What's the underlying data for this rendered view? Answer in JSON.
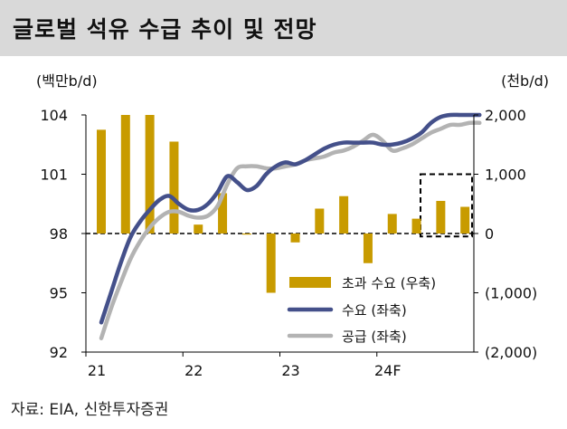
{
  "chart_data": {
    "type": "bar",
    "title": "글로벌 석유 수급 추이 및 전망",
    "left_axis": {
      "unit_label": "(백만b/d)",
      "range": [
        92,
        104
      ],
      "ticks": [
        104,
        101,
        98,
        95,
        92
      ],
      "tick_labels": [
        "104",
        "101",
        "98",
        "95",
        "92"
      ]
    },
    "right_axis": {
      "unit_label": "(천b/d)",
      "range": [
        -2000,
        2000
      ],
      "ticks": [
        2000,
        1000,
        0,
        -1000,
        -2000
      ],
      "tick_labels": [
        "2,000",
        "1,000",
        "0",
        "(1,000)",
        "(2,000)"
      ]
    },
    "x_axis": {
      "range": [
        2021.0,
        2025.0
      ],
      "ticks": [
        2021,
        2022,
        2023,
        2024
      ],
      "tick_labels": [
        "21",
        "22",
        "23",
        "24F"
      ]
    },
    "series": [
      {
        "name": "초과 수요 (우축)",
        "kind": "bar",
        "axis": "right",
        "color": "#c89b00",
        "x": [
          2021.0,
          2021.25,
          2021.5,
          2021.75,
          2022.0,
          2022.25,
          2022.5,
          2022.75,
          2023.0,
          2023.25,
          2023.5,
          2023.75,
          2024.0,
          2024.25,
          2024.5,
          2024.75
        ],
        "values": [
          1750,
          2000,
          2000,
          1550,
          150,
          680,
          0,
          -1000,
          -150,
          420,
          630,
          -500,
          330,
          250,
          550,
          450
        ]
      },
      {
        "name": "수요 (좌축)",
        "kind": "line",
        "axis": "left",
        "color": "#44508a",
        "x": [
          2021.0,
          2021.1,
          2021.2,
          2021.3,
          2021.4,
          2021.5,
          2021.6,
          2021.7,
          2021.8,
          2021.9,
          2022.0,
          2022.1,
          2022.2,
          2022.3,
          2022.4,
          2022.5,
          2022.6,
          2022.7,
          2022.8,
          2022.9,
          2023.0,
          2023.1,
          2023.2,
          2023.3,
          2023.4,
          2023.5,
          2023.6,
          2023.7,
          2023.8,
          2023.9,
          2024.0,
          2024.1,
          2024.2,
          2024.3,
          2024.4,
          2024.5,
          2024.6,
          2024.7,
          2024.8,
          2024.9
        ],
        "values": [
          93.5,
          95.0,
          96.5,
          97.8,
          98.6,
          99.2,
          99.7,
          99.9,
          99.5,
          99.2,
          99.2,
          99.5,
          100.1,
          100.9,
          100.6,
          100.2,
          100.4,
          101.0,
          101.4,
          101.6,
          101.5,
          101.7,
          102.0,
          102.3,
          102.5,
          102.6,
          102.6,
          102.6,
          102.6,
          102.5,
          102.5,
          102.6,
          102.8,
          103.1,
          103.6,
          103.9,
          104.0,
          104.0,
          104.0,
          104.0
        ]
      },
      {
        "name": "공급 (좌축)",
        "kind": "line",
        "axis": "left",
        "color": "#b3b3b3",
        "x": [
          2021.0,
          2021.1,
          2021.2,
          2021.3,
          2021.4,
          2021.5,
          2021.6,
          2021.7,
          2021.8,
          2021.9,
          2022.0,
          2022.1,
          2022.2,
          2022.3,
          2022.4,
          2022.5,
          2022.6,
          2022.7,
          2022.8,
          2022.9,
          2023.0,
          2023.1,
          2023.2,
          2023.3,
          2023.4,
          2023.5,
          2023.6,
          2023.7,
          2023.8,
          2023.9,
          2024.0,
          2024.1,
          2024.2,
          2024.3,
          2024.4,
          2024.5,
          2024.6,
          2024.7,
          2024.8,
          2024.9
        ],
        "values": [
          92.7,
          94.2,
          95.5,
          96.7,
          97.6,
          98.3,
          98.8,
          99.1,
          99.1,
          98.9,
          98.8,
          98.9,
          99.4,
          100.5,
          101.3,
          101.4,
          101.4,
          101.3,
          101.3,
          101.4,
          101.5,
          101.7,
          101.8,
          101.9,
          102.1,
          102.2,
          102.4,
          102.7,
          103.0,
          102.7,
          102.2,
          102.3,
          102.5,
          102.8,
          103.1,
          103.3,
          103.5,
          103.5,
          103.6,
          103.6
        ]
      }
    ],
    "legend_position": "bottom-right",
    "forecast_box": {
      "x_range": [
        2024.45,
        2025.0
      ],
      "value_range_right": [
        -50,
        1000
      ]
    }
  },
  "source_text": "자료: EIA, 신한투자증권"
}
